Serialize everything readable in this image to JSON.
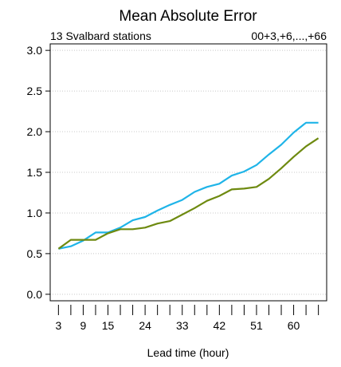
{
  "chart_data": {
    "type": "line",
    "title": "Mean Absolute Error",
    "subtitle_left": "13 Svalbard stations",
    "subtitle_right": "00+3,+6,...,+66",
    "xlabel": "Lead time (hour)",
    "ylabel": "",
    "x": [
      3,
      6,
      9,
      12,
      15,
      18,
      21,
      24,
      27,
      30,
      33,
      36,
      39,
      42,
      45,
      48,
      51,
      54,
      57,
      60,
      63,
      66
    ],
    "x_ticks": [
      3,
      6,
      9,
      12,
      15,
      18,
      21,
      24,
      27,
      30,
      33,
      36,
      39,
      42,
      45,
      48,
      51,
      54,
      57,
      60,
      63,
      66
    ],
    "x_tick_labels": [
      "3",
      "9",
      "15",
      "24",
      "33",
      "42",
      "51",
      "60"
    ],
    "x_tick_label_values": [
      3,
      9,
      15,
      24,
      33,
      42,
      51,
      60
    ],
    "xlim": [
      1,
      68
    ],
    "ylim": [
      -0.08,
      3.08
    ],
    "y_ticks": [
      0.0,
      0.5,
      1.0,
      1.5,
      2.0,
      2.5,
      3.0
    ],
    "y_tick_labels": [
      "0.0",
      "0.5",
      "1.0",
      "1.5",
      "2.0",
      "2.5",
      "3.0"
    ],
    "grid": "horizontal dotted",
    "series": [
      {
        "color": "#1fb4e8",
        "values": [
          0.56,
          0.59,
          0.66,
          0.76,
          0.76,
          0.82,
          0.91,
          0.95,
          1.03,
          1.1,
          1.16,
          1.26,
          1.32,
          1.36,
          1.46,
          1.51,
          1.59,
          1.72,
          1.84,
          1.99,
          2.11,
          2.11
        ]
      },
      {
        "color": "#6e8a10",
        "values": [
          0.56,
          0.67,
          0.67,
          0.67,
          0.75,
          0.8,
          0.8,
          0.82,
          0.87,
          0.9,
          0.98,
          1.06,
          1.15,
          1.21,
          1.29,
          1.3,
          1.32,
          1.42,
          1.55,
          1.69,
          1.82,
          1.92
        ]
      }
    ]
  }
}
